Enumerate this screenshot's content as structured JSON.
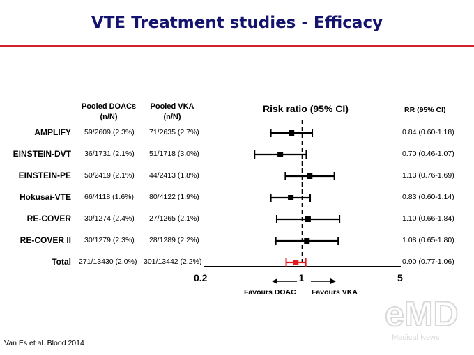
{
  "page": {
    "title": "VTE Treatment studies - Efficacy",
    "title_color": "#14146e",
    "rule_color": "#d2232a",
    "source": "Van Es et al. Blood 2014",
    "watermark": {
      "logo_text": "eMD",
      "subtitle": "Medical News"
    }
  },
  "headers": {
    "doac_line1": "Pooled DOACs",
    "doac_line2": "(n/N)",
    "vka_line1": "Pooled VKA",
    "vka_line2": "(n/N)",
    "risk_ratio": "Risk ratio (95% CI)",
    "rr_ci": "RR (95% CI)"
  },
  "favours": {
    "left": "Favours DOAC",
    "right": "Favours VKA"
  },
  "chart_data": {
    "type": "forest",
    "x_scale": "log",
    "xlim": [
      0.2,
      5
    ],
    "reference_line": 1,
    "x_ticks": [
      {
        "value": 0.2,
        "label": "0.2"
      },
      {
        "value": 1,
        "label": "1"
      },
      {
        "value": 5,
        "label": "5"
      }
    ],
    "colors": {
      "study": "#000000",
      "total": "#e31a1c"
    },
    "rows": [
      {
        "study": "AMPLIFY",
        "doac": "59/2609 (2.3%)",
        "vka": "71/2635 (2.7%)",
        "rr": 0.84,
        "lo": 0.6,
        "hi": 1.18,
        "rr_text": "0.84 (0.60-1.18)",
        "total": false
      },
      {
        "study": "EINSTEIN-DVT",
        "doac": "36/1731 (2.1%)",
        "vka": "51/1718 (3.0%)",
        "rr": 0.7,
        "lo": 0.46,
        "hi": 1.07,
        "rr_text": "0.70 (0.46-1.07)",
        "total": false
      },
      {
        "study": "EINSTEIN-PE",
        "doac": "50/2419 (2.1%)",
        "vka": "44/2413 (1.8%)",
        "rr": 1.13,
        "lo": 0.76,
        "hi": 1.69,
        "rr_text": "1.13 (0.76-1.69)",
        "total": false
      },
      {
        "study": "Hokusai-VTE",
        "doac": "66/4118 (1.6%)",
        "vka": "80/4122 (1.9%)",
        "rr": 0.83,
        "lo": 0.6,
        "hi": 1.14,
        "rr_text": "0.83 (0.60-1.14)",
        "total": false
      },
      {
        "study": "RE-COVER",
        "doac": "30/1274 (2.4%)",
        "vka": "27/1265 (2.1%)",
        "rr": 1.1,
        "lo": 0.66,
        "hi": 1.84,
        "rr_text": "1.10 (0.66-1.84)",
        "total": false
      },
      {
        "study": "RE-COVER II",
        "doac": "30/1279 (2.3%)",
        "vka": "28/1289 (2.2%)",
        "rr": 1.08,
        "lo": 0.65,
        "hi": 1.8,
        "rr_text": "1.08 (0.65-1.80)",
        "total": false
      },
      {
        "study": "Total",
        "doac": "271/13430 (2.0%)",
        "vka": "301/13442 (2.2%)",
        "rr": 0.9,
        "lo": 0.77,
        "hi": 1.06,
        "rr_text": "0.90 (0.77-1.06)",
        "total": true
      }
    ]
  }
}
